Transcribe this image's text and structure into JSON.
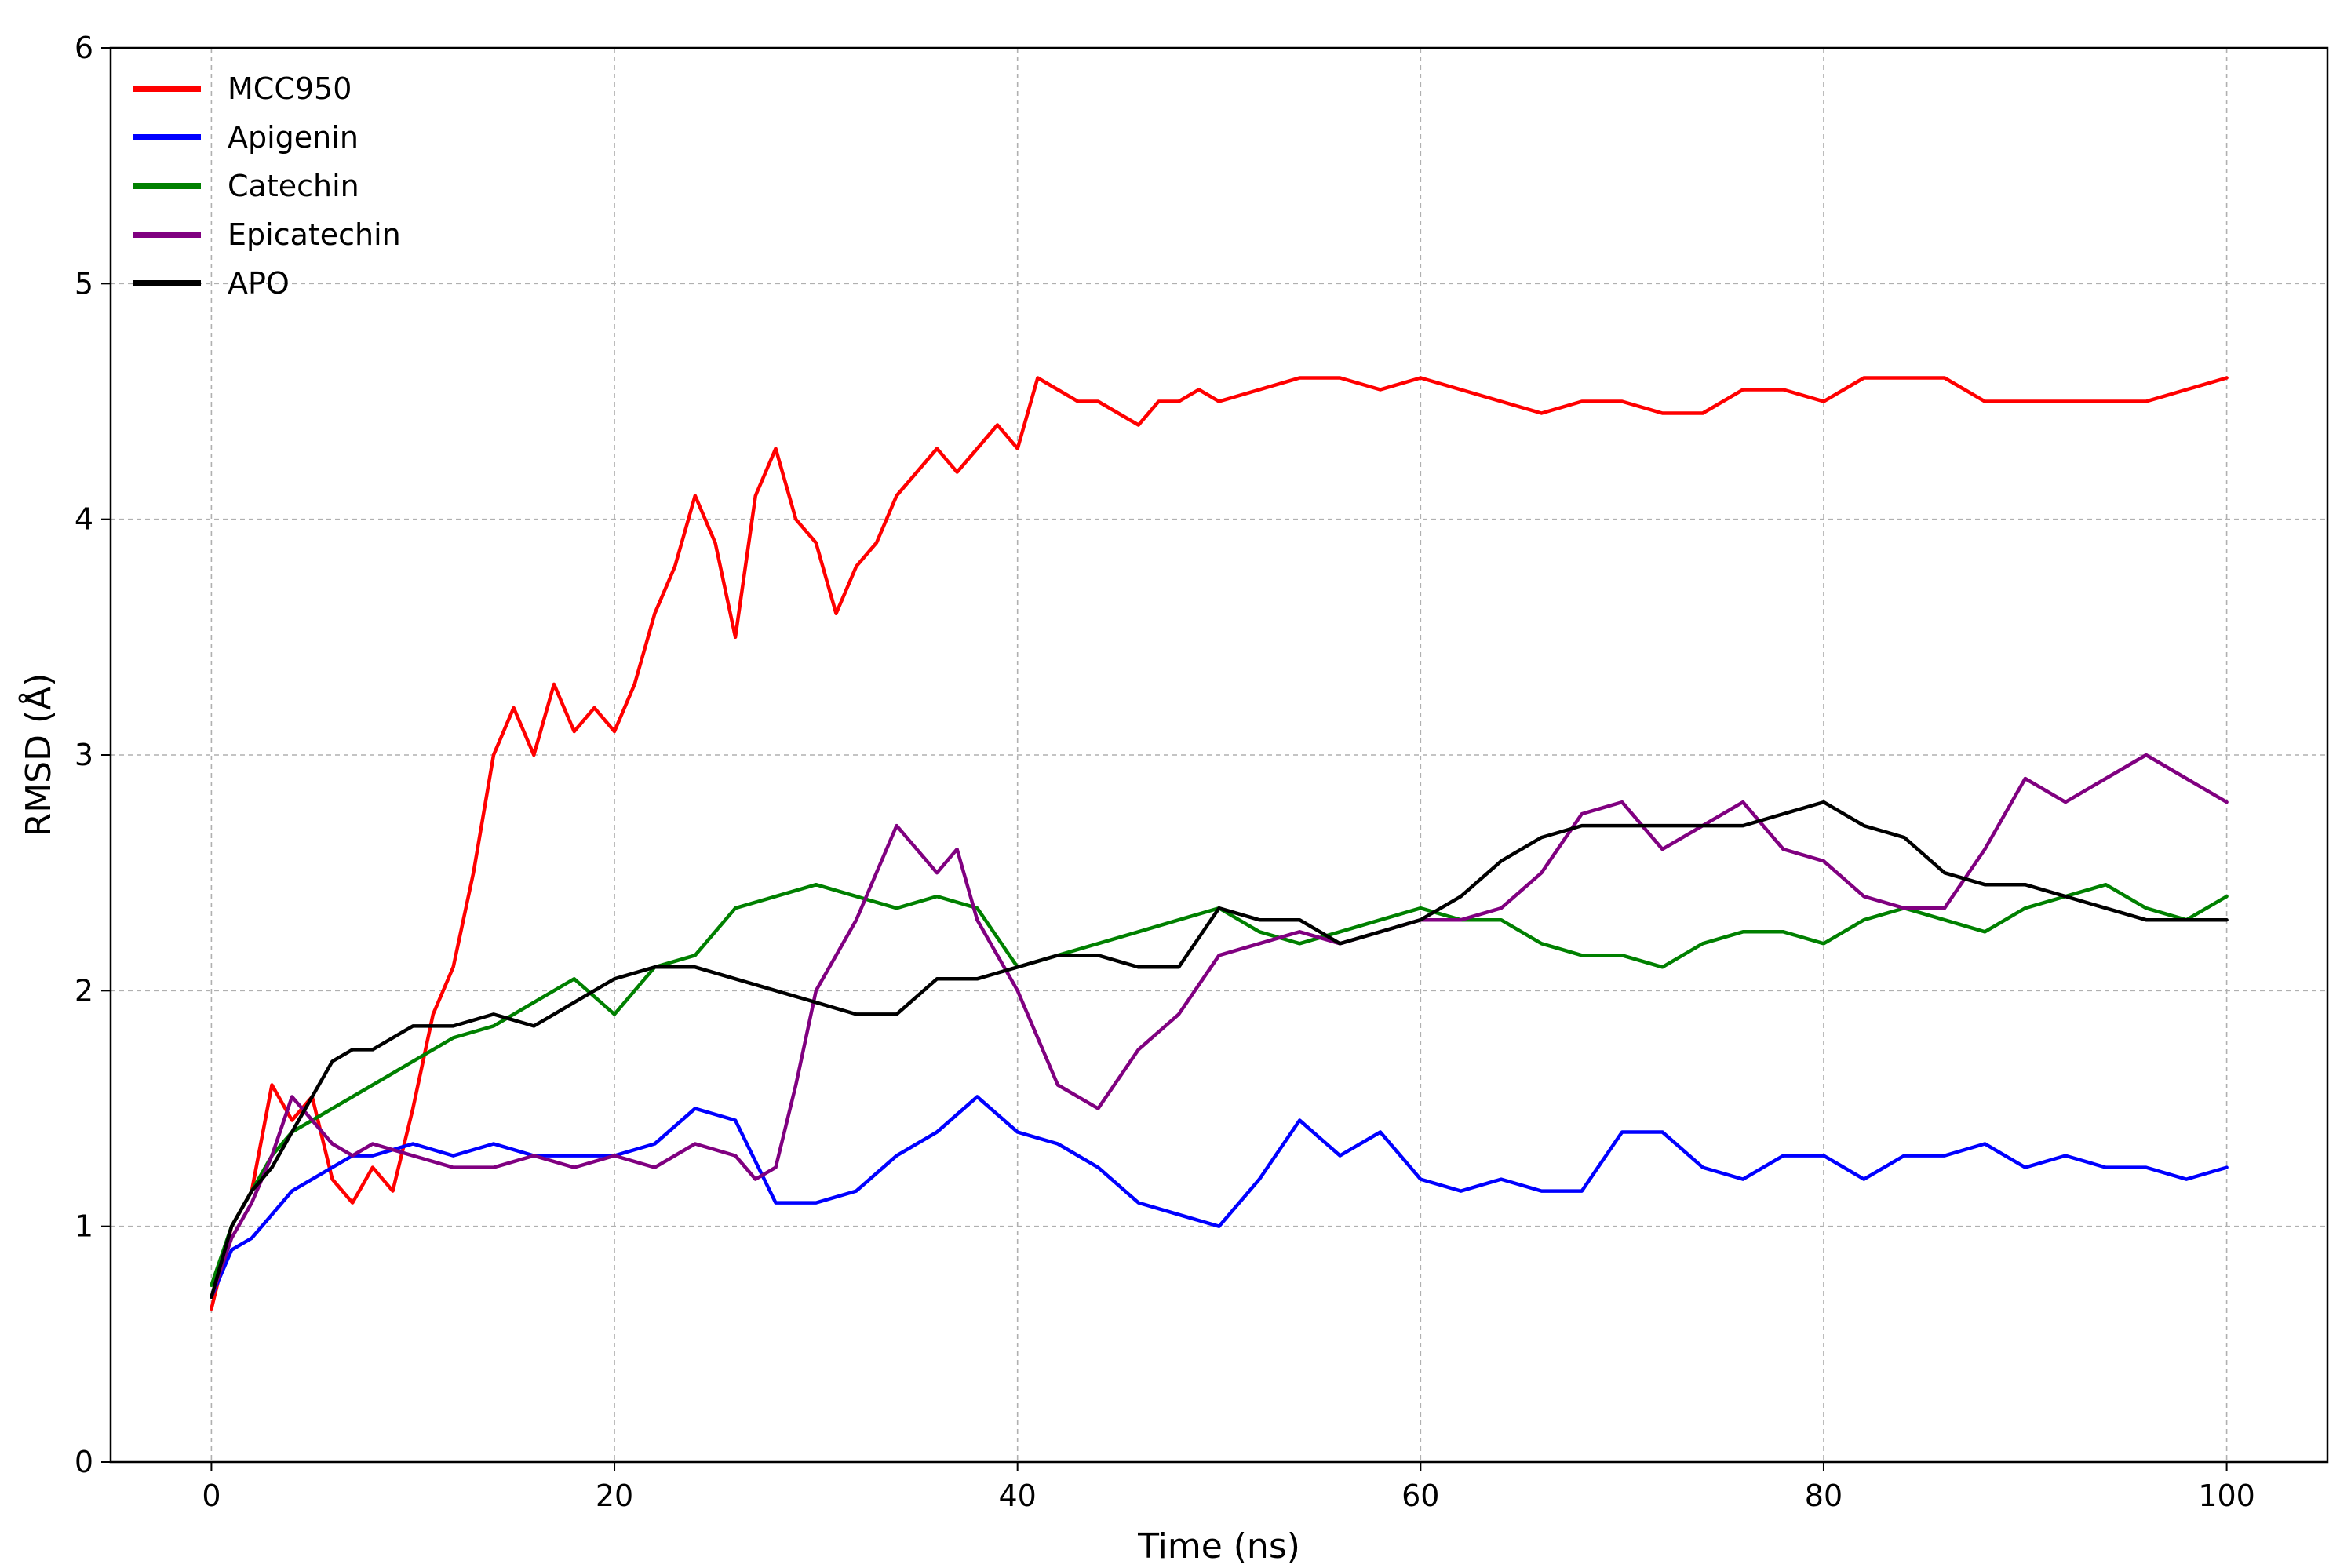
{
  "chart_data": {
    "type": "line",
    "title": "",
    "xlabel": "Time (ns)",
    "ylabel": "RMSD (Å)",
    "xlim": [
      -5,
      105
    ],
    "ylim": [
      0,
      6
    ],
    "xticks": [
      0,
      20,
      40,
      60,
      80,
      100
    ],
    "yticks": [
      0,
      1,
      2,
      3,
      4,
      5,
      6
    ],
    "grid": true,
    "legend_position": "top-left",
    "series": [
      {
        "name": "MCC950",
        "color": "#ff0000",
        "x": [
          0,
          1,
          2,
          3,
          4,
          5,
          6,
          7,
          8,
          9,
          10,
          11,
          12,
          13,
          14,
          15,
          16,
          17,
          18,
          19,
          20,
          21,
          22,
          23,
          24,
          25,
          26,
          27,
          28,
          29,
          30,
          31,
          32,
          33,
          34,
          35,
          36,
          37,
          38,
          39,
          40,
          41,
          42,
          43,
          44,
          45,
          46,
          47,
          48,
          49,
          50,
          52,
          54,
          56,
          58,
          60,
          62,
          64,
          66,
          68,
          70,
          72,
          74,
          76,
          78,
          80,
          82,
          84,
          86,
          88,
          90,
          92,
          94,
          96,
          98,
          100
        ],
        "y": [
          0.65,
          1.0,
          1.15,
          1.6,
          1.45,
          1.55,
          1.2,
          1.1,
          1.25,
          1.15,
          1.5,
          1.9,
          2.1,
          2.5,
          3.0,
          3.2,
          3.0,
          3.3,
          3.1,
          3.2,
          3.1,
          3.3,
          3.6,
          3.8,
          4.1,
          3.9,
          3.5,
          4.1,
          4.3,
          4.0,
          3.9,
          3.6,
          3.8,
          3.9,
          4.1,
          4.2,
          4.3,
          4.2,
          4.3,
          4.4,
          4.3,
          4.6,
          4.55,
          4.5,
          4.5,
          4.45,
          4.4,
          4.5,
          4.5,
          4.55,
          4.5,
          4.55,
          4.6,
          4.6,
          4.55,
          4.6,
          4.55,
          4.5,
          4.45,
          4.5,
          4.5,
          4.45,
          4.45,
          4.55,
          4.55,
          4.5,
          4.6,
          4.6,
          4.6,
          4.5,
          4.5,
          4.5,
          4.5,
          4.5,
          4.55,
          4.6
        ]
      },
      {
        "name": "Apigenin",
        "color": "#0000ff",
        "x": [
          0,
          1,
          2,
          3,
          4,
          5,
          6,
          7,
          8,
          10,
          12,
          14,
          16,
          18,
          20,
          22,
          24,
          26,
          28,
          30,
          32,
          34,
          36,
          38,
          40,
          42,
          44,
          46,
          48,
          50,
          52,
          54,
          56,
          58,
          60,
          62,
          64,
          66,
          68,
          70,
          72,
          74,
          76,
          78,
          80,
          82,
          84,
          86,
          88,
          90,
          92,
          94,
          96,
          98,
          100
        ],
        "y": [
          0.7,
          0.9,
          0.95,
          1.05,
          1.15,
          1.2,
          1.25,
          1.3,
          1.3,
          1.35,
          1.3,
          1.35,
          1.3,
          1.3,
          1.3,
          1.35,
          1.5,
          1.45,
          1.1,
          1.1,
          1.15,
          1.3,
          1.4,
          1.55,
          1.4,
          1.35,
          1.25,
          1.1,
          1.05,
          1.0,
          1.2,
          1.45,
          1.3,
          1.4,
          1.2,
          1.15,
          1.2,
          1.15,
          1.15,
          1.4,
          1.4,
          1.25,
          1.2,
          1.3,
          1.3,
          1.2,
          1.3,
          1.3,
          1.35,
          1.25,
          1.3,
          1.25,
          1.25,
          1.2,
          1.25
        ]
      },
      {
        "name": "Catechin",
        "color": "#008000",
        "x": [
          0,
          1,
          2,
          3,
          4,
          5,
          6,
          7,
          8,
          10,
          12,
          14,
          16,
          18,
          20,
          22,
          24,
          26,
          28,
          30,
          32,
          34,
          36,
          38,
          40,
          42,
          44,
          46,
          48,
          50,
          52,
          54,
          56,
          58,
          60,
          62,
          64,
          66,
          68,
          70,
          72,
          74,
          76,
          78,
          80,
          82,
          84,
          86,
          88,
          90,
          92,
          94,
          96,
          98,
          100
        ],
        "y": [
          0.75,
          1.0,
          1.15,
          1.3,
          1.4,
          1.45,
          1.5,
          1.55,
          1.6,
          1.7,
          1.8,
          1.85,
          1.95,
          2.05,
          1.9,
          2.1,
          2.15,
          2.35,
          2.4,
          2.45,
          2.4,
          2.35,
          2.4,
          2.35,
          2.1,
          2.15,
          2.2,
          2.25,
          2.3,
          2.35,
          2.25,
          2.2,
          2.25,
          2.3,
          2.35,
          2.3,
          2.3,
          2.2,
          2.15,
          2.15,
          2.1,
          2.2,
          2.25,
          2.25,
          2.2,
          2.3,
          2.35,
          2.3,
          2.25,
          2.35,
          2.4,
          2.45,
          2.35,
          2.3,
          2.4
        ]
      },
      {
        "name": "Epicatechin",
        "color": "#800080",
        "x": [
          0,
          1,
          2,
          3,
          4,
          5,
          6,
          7,
          8,
          10,
          12,
          14,
          16,
          18,
          20,
          22,
          24,
          26,
          27,
          28,
          29,
          30,
          32,
          34,
          36,
          37,
          38,
          40,
          42,
          44,
          46,
          48,
          50,
          52,
          54,
          56,
          58,
          60,
          62,
          64,
          66,
          68,
          70,
          72,
          74,
          76,
          78,
          80,
          82,
          84,
          86,
          88,
          90,
          92,
          94,
          96,
          98,
          100
        ],
        "y": [
          0.7,
          0.95,
          1.1,
          1.3,
          1.55,
          1.45,
          1.35,
          1.3,
          1.35,
          1.3,
          1.25,
          1.25,
          1.3,
          1.25,
          1.3,
          1.25,
          1.35,
          1.3,
          1.2,
          1.25,
          1.6,
          2.0,
          2.3,
          2.7,
          2.5,
          2.6,
          2.3,
          2.0,
          1.6,
          1.5,
          1.75,
          1.9,
          2.15,
          2.2,
          2.25,
          2.2,
          2.25,
          2.3,
          2.3,
          2.35,
          2.5,
          2.75,
          2.8,
          2.6,
          2.7,
          2.8,
          2.6,
          2.55,
          2.4,
          2.35,
          2.35,
          2.6,
          2.9,
          2.8,
          2.9,
          3.0,
          2.9,
          2.8
        ]
      },
      {
        "name": "APO",
        "color": "#000000",
        "x": [
          0,
          1,
          2,
          3,
          4,
          5,
          6,
          7,
          8,
          9,
          10,
          12,
          14,
          16,
          18,
          20,
          22,
          24,
          26,
          28,
          30,
          32,
          34,
          36,
          38,
          40,
          42,
          44,
          46,
          48,
          50,
          52,
          54,
          56,
          58,
          60,
          62,
          64,
          66,
          68,
          70,
          72,
          74,
          76,
          78,
          80,
          82,
          84,
          86,
          88,
          90,
          92,
          94,
          96,
          98,
          100
        ],
        "y": [
          0.7,
          1.0,
          1.15,
          1.25,
          1.4,
          1.55,
          1.7,
          1.75,
          1.75,
          1.8,
          1.85,
          1.85,
          1.9,
          1.85,
          1.95,
          2.05,
          2.1,
          2.1,
          2.05,
          2.0,
          1.95,
          1.9,
          1.9,
          2.05,
          2.05,
          2.1,
          2.15,
          2.15,
          2.1,
          2.1,
          2.35,
          2.3,
          2.3,
          2.2,
          2.25,
          2.3,
          2.4,
          2.55,
          2.65,
          2.7,
          2.7,
          2.7,
          2.7,
          2.7,
          2.75,
          2.8,
          2.7,
          2.65,
          2.5,
          2.45,
          2.45,
          2.4,
          2.35,
          2.3,
          2.3,
          2.3
        ]
      }
    ]
  }
}
